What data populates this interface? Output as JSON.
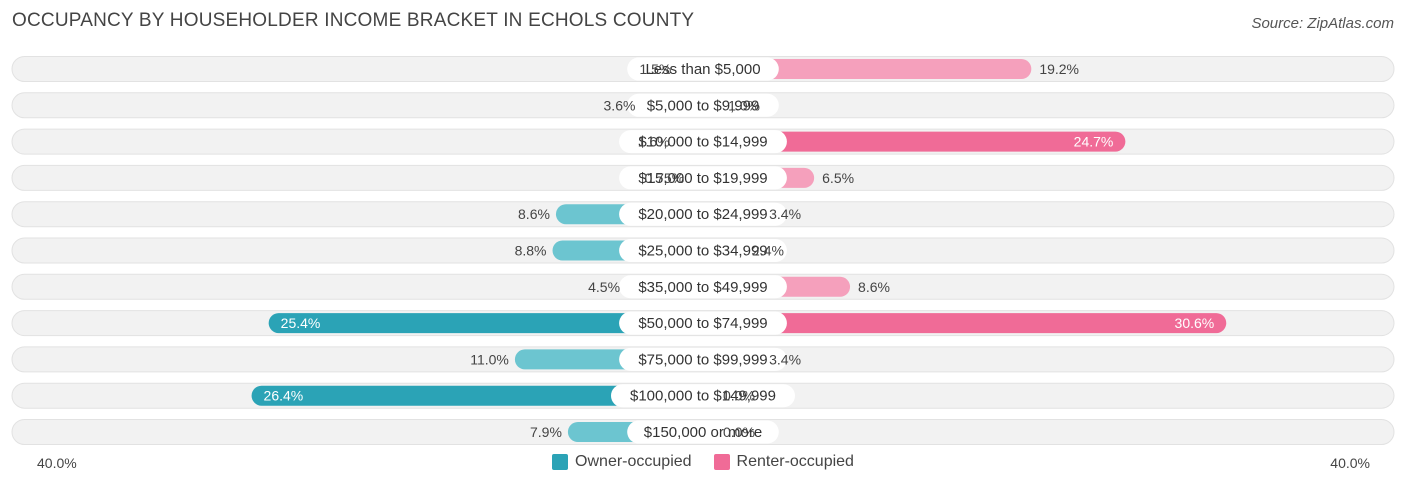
{
  "title": "OCCUPANCY BY HOUSEHOLDER INCOME BRACKET IN ECHOLS COUNTY",
  "source": "Source: ZipAtlas.com",
  "colors": {
    "owner": "#6cc5d0",
    "owner_strong": "#2ba3b6",
    "renter": "#f5a0bc",
    "renter_strong": "#f06b97",
    "row_bg": "#f2f2f2"
  },
  "axis": {
    "left_label": "40.0%",
    "right_label": "40.0%"
  },
  "legend": {
    "owner": "Owner-occupied",
    "renter": "Renter-occupied"
  },
  "chart_data": {
    "type": "bar",
    "orientation": "horizontal-diverging",
    "xlim": [
      -40,
      40
    ],
    "categories": [
      "Less than $5,000",
      "$5,000 to $9,999",
      "$10,000 to $14,999",
      "$15,000 to $19,999",
      "$20,000 to $24,999",
      "$25,000 to $34,999",
      "$35,000 to $49,999",
      "$50,000 to $74,999",
      "$75,000 to $99,999",
      "$100,000 to $149,999",
      "$150,000 or more"
    ],
    "series": [
      {
        "name": "Owner-occupied",
        "values": [
          1.5,
          3.6,
          1.6,
          0.75,
          8.6,
          8.8,
          4.5,
          25.4,
          11.0,
          26.4,
          7.9
        ],
        "labels": [
          "1.5%",
          "3.6%",
          "1.6%",
          "0.75%",
          "8.6%",
          "8.8%",
          "4.5%",
          "25.4%",
          "11.0%",
          "26.4%",
          "7.9%"
        ]
      },
      {
        "name": "Renter-occupied",
        "values": [
          19.2,
          1.0,
          24.7,
          6.5,
          3.4,
          2.4,
          8.6,
          30.6,
          3.4,
          0.0,
          0.0
        ],
        "labels": [
          "19.2%",
          "1.0%",
          "24.7%",
          "6.5%",
          "3.4%",
          "2.4%",
          "8.6%",
          "30.6%",
          "3.4%",
          "0.0%",
          "0.0%"
        ]
      }
    ]
  }
}
